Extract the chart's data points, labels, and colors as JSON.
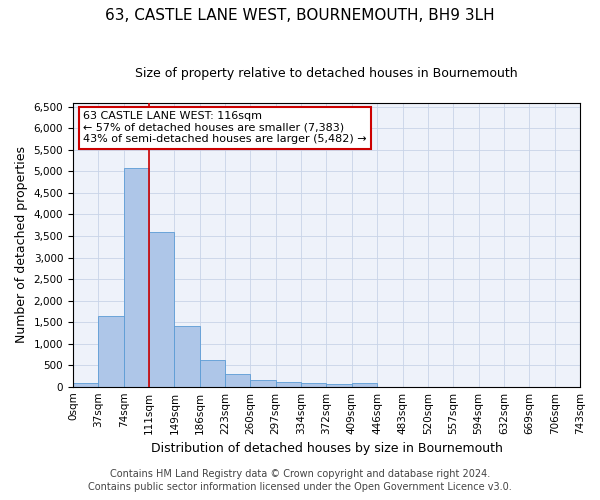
{
  "title1": "63, CASTLE LANE WEST, BOURNEMOUTH, BH9 3LH",
  "title2": "Size of property relative to detached houses in Bournemouth",
  "xlabel": "Distribution of detached houses by size in Bournemouth",
  "ylabel": "Number of detached properties",
  "footer1": "Contains HM Land Registry data © Crown copyright and database right 2024.",
  "footer2": "Contains public sector information licensed under the Open Government Licence v3.0.",
  "annotation_line1": "63 CASTLE LANE WEST: 116sqm",
  "annotation_line2": "← 57% of detached houses are smaller (7,383)",
  "annotation_line3": "43% of semi-detached houses are larger (5,482) →",
  "bar_values": [
    75,
    1650,
    5075,
    3600,
    1400,
    620,
    290,
    150,
    110,
    80,
    55,
    75,
    0,
    0,
    0,
    0,
    0,
    0,
    0,
    0
  ],
  "bar_labels": [
    "0sqm",
    "37sqm",
    "74sqm",
    "111sqm",
    "149sqm",
    "186sqm",
    "223sqm",
    "260sqm",
    "297sqm",
    "334sqm",
    "372sqm",
    "409sqm",
    "446sqm",
    "483sqm",
    "520sqm",
    "557sqm",
    "594sqm",
    "632sqm",
    "669sqm",
    "706sqm",
    "743sqm"
  ],
  "bar_color": "#aec6e8",
  "bar_edge_color": "#5b9bd5",
  "ylim": [
    0,
    6600
  ],
  "yticks": [
    0,
    500,
    1000,
    1500,
    2000,
    2500,
    3000,
    3500,
    4000,
    4500,
    5000,
    5500,
    6000,
    6500
  ],
  "vline_color": "#cc0000",
  "grid_color": "#c8d4e8",
  "box_edge_color": "#cc0000",
  "title_fontsize": 11,
  "subtitle_fontsize": 9,
  "axis_label_fontsize": 9,
  "tick_fontsize": 7.5,
  "annotation_fontsize": 8,
  "footer_fontsize": 7
}
